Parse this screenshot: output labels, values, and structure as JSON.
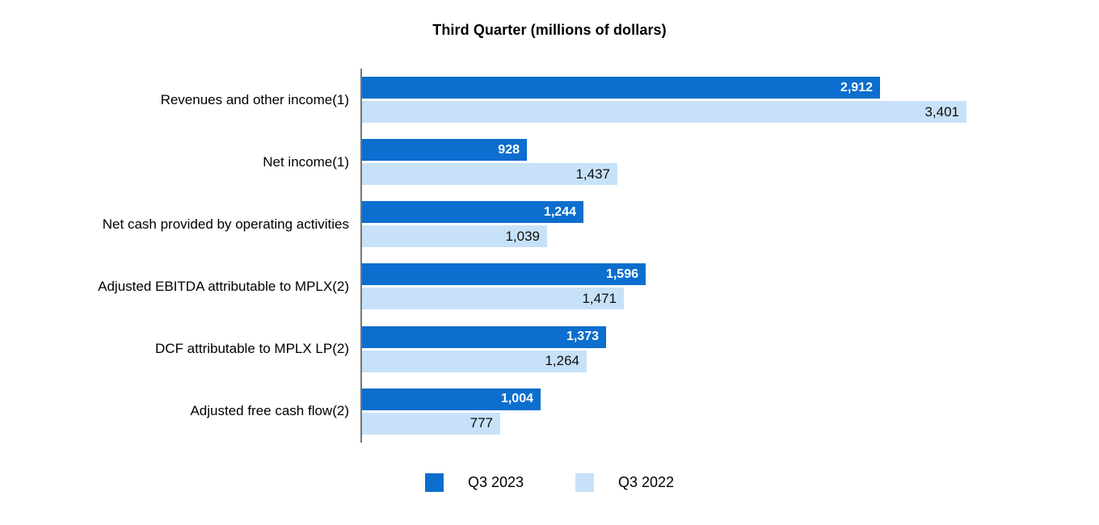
{
  "title": "Third Quarter (millions of dollars)",
  "chart_data": {
    "type": "bar",
    "orientation": "horizontal",
    "title": "Third Quarter (millions of dollars)",
    "categories": [
      "Revenues and other income(1)",
      "Net income(1)",
      "Net cash provided by operating activities",
      "Adjusted EBITDA attributable to MPLX(2)",
      "DCF attributable to MPLX LP(2)",
      "Adjusted free cash flow(2)"
    ],
    "series": [
      {
        "name": "Q3 2023",
        "color": "#0C6ECE",
        "values": [
          2912,
          928,
          1244,
          1596,
          1373,
          1004
        ],
        "labels": [
          "2,912",
          "928",
          "1,244",
          "1,596",
          "1,373",
          "1,004"
        ]
      },
      {
        "name": "Q3 2022",
        "color": "#C7E2F8",
        "values": [
          3401,
          1437,
          1039,
          1471,
          1264,
          777
        ],
        "labels": [
          "3,401",
          "1,437",
          "1,039",
          "1,471",
          "1,264",
          "777"
        ]
      }
    ],
    "xlim": [
      0,
      3500
    ],
    "grid": false,
    "legend_position": "bottom",
    "value_labels": "inside-end",
    "axis_line_color": "#757575"
  }
}
